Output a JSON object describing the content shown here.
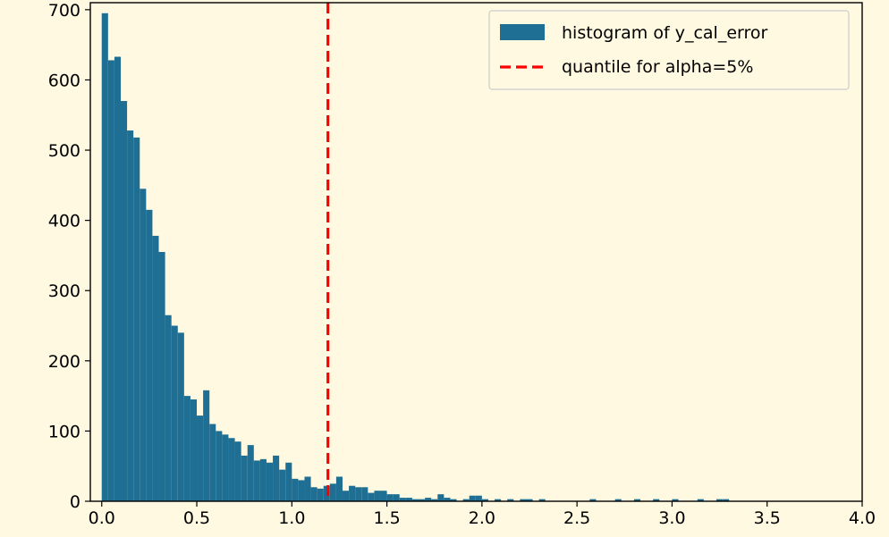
{
  "chart_data": {
    "type": "bar",
    "xlim": [
      -0.06,
      4.0
    ],
    "ylim": [
      0,
      710
    ],
    "xticks": [
      0.0,
      0.5,
      1.0,
      1.5,
      2.0,
      2.5,
      3.0,
      3.5,
      4.0
    ],
    "xtick_labels": [
      "0.0",
      "0.5",
      "1.0",
      "1.5",
      "2.0",
      "2.5",
      "3.0",
      "3.5",
      "4.0"
    ],
    "yticks": [
      0,
      100,
      200,
      300,
      400,
      500,
      600,
      700
    ],
    "ytick_labels": [
      "0",
      "100",
      "200",
      "300",
      "400",
      "500",
      "600",
      "700"
    ],
    "grid": false,
    "bin_width": 0.0333,
    "series": [
      {
        "name": "histogram of y_cal_error",
        "color": "#1f6f94",
        "bin_start": [
          0.0,
          0.0333,
          0.0667,
          0.1,
          0.1333,
          0.1667,
          0.2,
          0.2333,
          0.2667,
          0.3,
          0.3333,
          0.3667,
          0.4,
          0.4333,
          0.4667,
          0.5,
          0.5333,
          0.5667,
          0.6,
          0.6333,
          0.6667,
          0.7,
          0.7333,
          0.7667,
          0.8,
          0.8333,
          0.8667,
          0.9,
          0.9333,
          0.9667,
          1.0,
          1.0333,
          1.0667,
          1.1,
          1.1333,
          1.1667,
          1.2,
          1.2333,
          1.2667,
          1.3,
          1.3333,
          1.3667,
          1.4,
          1.4333,
          1.4667,
          1.5,
          1.5333,
          1.5667,
          1.6,
          1.6333,
          1.6667,
          1.7,
          1.7333,
          1.7667,
          1.8,
          1.8333,
          1.8667,
          1.9,
          1.9333,
          1.9667,
          2.0,
          2.0333,
          2.0667,
          2.1,
          2.1333,
          2.1667,
          2.2,
          2.2333,
          2.2667,
          2.3,
          2.3333,
          2.3667,
          2.4,
          2.4333,
          2.4667,
          2.5,
          2.5333,
          2.5667,
          2.6,
          2.6333,
          2.6667,
          2.7,
          2.7333,
          2.7667,
          2.8,
          2.8333,
          2.8667,
          2.9,
          2.9333,
          2.9667,
          3.0,
          3.0333,
          3.0667,
          3.1,
          3.1333,
          3.1667,
          3.2,
          3.2333,
          3.2667,
          3.3
        ],
        "values": [
          695,
          628,
          633,
          570,
          528,
          518,
          445,
          415,
          378,
          355,
          265,
          250,
          240,
          150,
          145,
          122,
          158,
          110,
          100,
          95,
          90,
          85,
          65,
          80,
          58,
          60,
          55,
          65,
          45,
          55,
          32,
          30,
          35,
          20,
          18,
          22,
          25,
          35,
          15,
          22,
          20,
          20,
          12,
          15,
          15,
          10,
          10,
          5,
          5,
          3,
          3,
          5,
          3,
          10,
          5,
          3,
          0,
          3,
          8,
          8,
          3,
          0,
          3,
          0,
          3,
          0,
          3,
          3,
          0,
          3,
          0,
          0,
          0,
          0,
          0,
          0,
          0,
          3,
          0,
          0,
          0,
          3,
          0,
          0,
          3,
          0,
          0,
          3,
          0,
          0,
          3,
          0,
          0,
          0,
          3,
          0,
          0,
          3,
          3,
          0
        ]
      }
    ],
    "vline": {
      "name": "quantile for alpha=5%",
      "x": 1.19,
      "color": "#ff0000",
      "style": "dashed"
    },
    "legend": {
      "placement": "top-right",
      "entries": [
        "histogram of y_cal_error",
        "quantile for alpha=5%"
      ]
    }
  }
}
